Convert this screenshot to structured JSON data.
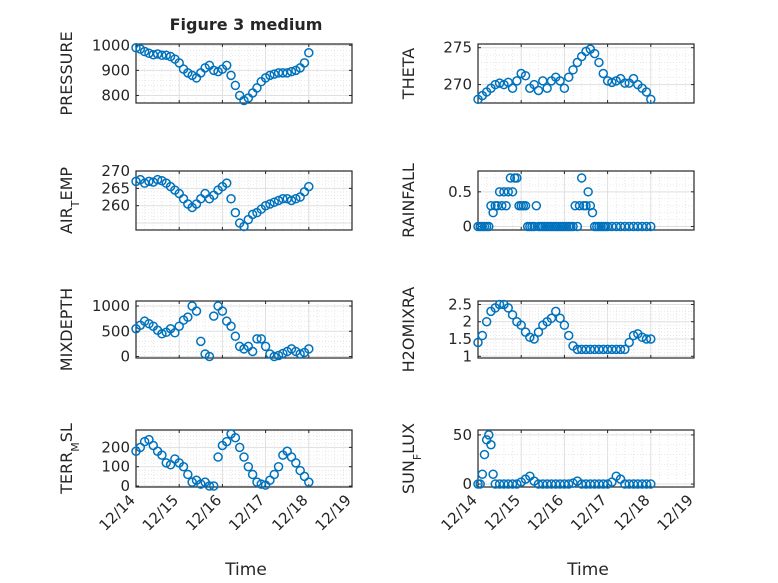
{
  "figure": {
    "title": "Figure 3 medium",
    "xlabel_left": "Time",
    "xlabel_right": "Time",
    "marker_color": "#0072BD",
    "x_ticks": [
      "12/14",
      "12/15",
      "12/16",
      "12/17",
      "12/18",
      "12/19"
    ]
  },
  "chart_data": [
    {
      "type": "scatter",
      "ylabel": "PRESSURE",
      "ylim": [
        770,
        1005
      ],
      "yticks": [
        800,
        900,
        1000
      ],
      "xlim": [
        0,
        5
      ],
      "grid": true,
      "x": [
        0.0,
        0.1,
        0.2,
        0.3,
        0.4,
        0.5,
        0.6,
        0.7,
        0.8,
        0.9,
        1.0,
        1.1,
        1.2,
        1.3,
        1.4,
        1.5,
        1.6,
        1.7,
        1.8,
        1.9,
        2.0,
        2.1,
        2.2,
        2.3,
        2.4,
        2.5,
        2.6,
        2.7,
        2.8,
        2.9,
        3.0,
        3.1,
        3.2,
        3.3,
        3.4,
        3.5,
        3.6,
        3.7,
        3.8,
        3.9,
        4.0
      ],
      "y": [
        990,
        985,
        975,
        968,
        962,
        965,
        960,
        960,
        955,
        945,
        930,
        905,
        890,
        880,
        870,
        890,
        910,
        920,
        900,
        895,
        905,
        920,
        880,
        840,
        800,
        780,
        790,
        810,
        830,
        855,
        870,
        880,
        885,
        890,
        890,
        890,
        895,
        900,
        910,
        930,
        970
      ]
    },
    {
      "type": "scatter",
      "ylabel": "THETA",
      "ylim": [
        267.5,
        275.5
      ],
      "yticks": [
        270,
        275
      ],
      "xlim": [
        0,
        5
      ],
      "grid": true,
      "x": [
        0.0,
        0.1,
        0.2,
        0.3,
        0.4,
        0.5,
        0.6,
        0.7,
        0.8,
        0.9,
        1.0,
        1.1,
        1.2,
        1.3,
        1.4,
        1.5,
        1.6,
        1.7,
        1.8,
        1.9,
        2.0,
        2.1,
        2.2,
        2.3,
        2.4,
        2.5,
        2.6,
        2.7,
        2.8,
        2.9,
        3.0,
        3.1,
        3.2,
        3.3,
        3.4,
        3.5,
        3.6,
        3.7,
        3.8,
        3.9,
        4.0
      ],
      "y": [
        268,
        268.5,
        269,
        269.5,
        270,
        270.2,
        270,
        270.3,
        269.5,
        270.5,
        271.5,
        271.2,
        269.5,
        270,
        269.2,
        270.5,
        269.5,
        270.5,
        271,
        270.5,
        269.5,
        271,
        272,
        273,
        273.8,
        274.5,
        274.8,
        274.2,
        273,
        271.5,
        270.5,
        270.3,
        270.5,
        270.8,
        270.2,
        270.2,
        270.8,
        270,
        269.5,
        269,
        268
      ]
    },
    {
      "type": "scatter",
      "ylabel": "AIR_TEMP",
      "ylim": [
        253,
        270
      ],
      "yticks": [
        260,
        265,
        270
      ],
      "xlim": [
        0,
        5
      ],
      "grid": true,
      "x": [
        0.0,
        0.1,
        0.2,
        0.3,
        0.4,
        0.5,
        0.6,
        0.7,
        0.8,
        0.9,
        1.0,
        1.1,
        1.2,
        1.3,
        1.4,
        1.5,
        1.6,
        1.7,
        1.8,
        1.9,
        2.0,
        2.1,
        2.2,
        2.3,
        2.4,
        2.5,
        2.6,
        2.7,
        2.8,
        2.9,
        3.0,
        3.1,
        3.2,
        3.3,
        3.4,
        3.5,
        3.6,
        3.7,
        3.8,
        3.9,
        4.0
      ],
      "y": [
        267,
        267.5,
        266.5,
        267,
        266.8,
        267.5,
        267.2,
        266.5,
        265.5,
        264.5,
        263.5,
        262,
        260.5,
        259.5,
        260.5,
        262,
        263.5,
        262,
        263,
        264.5,
        265.5,
        266.5,
        262,
        258,
        255,
        254,
        256,
        257.5,
        258,
        259,
        260,
        260.5,
        261,
        261.5,
        262,
        262,
        261.5,
        262,
        262.5,
        264,
        265.5
      ]
    },
    {
      "type": "scatter",
      "ylabel": "RAINFALL",
      "ylim": [
        -0.05,
        0.8
      ],
      "yticks": [
        0,
        0.5
      ],
      "xlim": [
        0,
        5
      ],
      "grid": true,
      "x": [
        0.0,
        0.05,
        0.1,
        0.15,
        0.2,
        0.25,
        0.3,
        0.35,
        0.4,
        0.45,
        0.5,
        0.55,
        0.6,
        0.65,
        0.7,
        0.75,
        0.8,
        0.85,
        0.9,
        0.95,
        1.0,
        1.05,
        1.1,
        1.15,
        1.2,
        1.25,
        1.3,
        1.35,
        1.4,
        1.45,
        1.5,
        1.55,
        1.6,
        1.65,
        1.7,
        1.75,
        1.8,
        1.85,
        1.9,
        1.95,
        2.0,
        2.05,
        2.1,
        2.15,
        2.2,
        2.25,
        2.3,
        2.35,
        2.4,
        2.45,
        2.5,
        2.55,
        2.6,
        2.65,
        2.7,
        2.75,
        2.8,
        2.85,
        2.9,
        2.95,
        3.0,
        3.1,
        3.2,
        3.3,
        3.4,
        3.5,
        3.6,
        3.7,
        3.8,
        3.9,
        4.0
      ],
      "y": [
        0,
        0,
        0,
        0,
        0,
        0,
        0.3,
        0.2,
        0.3,
        0.3,
        0.5,
        0.3,
        0.5,
        0.3,
        0.5,
        0.7,
        0.5,
        0.7,
        0.7,
        0.3,
        0.3,
        0.3,
        0.3,
        0,
        0,
        0,
        0,
        0.3,
        0,
        0,
        0,
        0,
        0,
        0,
        0,
        0,
        0,
        0,
        0,
        0,
        0,
        0,
        0,
        0,
        0,
        0.3,
        0,
        0.3,
        0.7,
        0.3,
        0.3,
        0.5,
        0.3,
        0.2,
        0,
        0,
        0,
        0,
        0,
        0,
        0,
        0,
        0,
        0,
        0,
        0,
        0,
        0,
        0,
        0,
        0
      ]
    },
    {
      "type": "scatter",
      "ylabel": "MIXDEPTH",
      "ylim": [
        -30,
        1100
      ],
      "yticks": [
        0,
        500,
        1000
      ],
      "xlim": [
        0,
        5
      ],
      "grid": true,
      "x": [
        0.0,
        0.1,
        0.2,
        0.3,
        0.4,
        0.5,
        0.6,
        0.7,
        0.8,
        0.9,
        1.0,
        1.1,
        1.2,
        1.3,
        1.4,
        1.5,
        1.6,
        1.7,
        1.8,
        1.9,
        2.0,
        2.1,
        2.2,
        2.3,
        2.4,
        2.5,
        2.6,
        2.7,
        2.8,
        2.9,
        3.0,
        3.1,
        3.2,
        3.3,
        3.4,
        3.5,
        3.6,
        3.7,
        3.8,
        3.9,
        4.0
      ],
      "y": [
        550,
        620,
        700,
        650,
        600,
        520,
        450,
        480,
        550,
        470,
        600,
        720,
        780,
        1000,
        900,
        300,
        50,
        0,
        800,
        1000,
        900,
        700,
        600,
        400,
        200,
        150,
        200,
        100,
        350,
        350,
        200,
        50,
        0,
        20,
        60,
        100,
        150,
        100,
        50,
        80,
        150
      ]
    },
    {
      "type": "scatter",
      "ylabel": "H2OMIXRA",
      "ylim": [
        0.95,
        2.6
      ],
      "yticks": [
        1,
        1.5,
        2,
        2.5
      ],
      "xlim": [
        0,
        5
      ],
      "grid": true,
      "x": [
        0.0,
        0.1,
        0.2,
        0.3,
        0.4,
        0.5,
        0.6,
        0.7,
        0.8,
        0.9,
        1.0,
        1.1,
        1.2,
        1.3,
        1.4,
        1.5,
        1.6,
        1.7,
        1.8,
        1.9,
        2.0,
        2.1,
        2.2,
        2.3,
        2.4,
        2.5,
        2.6,
        2.7,
        2.8,
        2.9,
        3.0,
        3.1,
        3.2,
        3.3,
        3.4,
        3.5,
        3.6,
        3.7,
        3.8,
        3.9,
        4.0
      ],
      "y": [
        1.4,
        1.6,
        2.0,
        2.3,
        2.4,
        2.5,
        2.5,
        2.4,
        2.2,
        2.0,
        1.9,
        1.7,
        1.55,
        1.5,
        1.7,
        1.9,
        2.0,
        2.1,
        2.3,
        2.1,
        1.9,
        1.6,
        1.3,
        1.2,
        1.2,
        1.2,
        1.2,
        1.2,
        1.2,
        1.2,
        1.2,
        1.2,
        1.2,
        1.2,
        1.2,
        1.4,
        1.6,
        1.65,
        1.55,
        1.5,
        1.5
      ]
    },
    {
      "type": "scatter",
      "ylabel": "TERR_MSL",
      "ylim": [
        -5,
        290
      ],
      "yticks": [
        0,
        100,
        200
      ],
      "xlim": [
        0,
        5
      ],
      "grid": true,
      "x": [
        0.0,
        0.1,
        0.2,
        0.3,
        0.4,
        0.5,
        0.6,
        0.7,
        0.8,
        0.9,
        1.0,
        1.1,
        1.2,
        1.3,
        1.4,
        1.5,
        1.6,
        1.7,
        1.8,
        1.9,
        2.0,
        2.1,
        2.2,
        2.3,
        2.4,
        2.5,
        2.6,
        2.7,
        2.8,
        2.9,
        3.0,
        3.1,
        3.2,
        3.3,
        3.4,
        3.5,
        3.6,
        3.7,
        3.8,
        3.9,
        4.0
      ],
      "y": [
        180,
        200,
        230,
        240,
        210,
        180,
        160,
        120,
        110,
        140,
        120,
        100,
        60,
        20,
        30,
        10,
        20,
        0,
        0,
        150,
        210,
        230,
        270,
        250,
        200,
        150,
        100,
        60,
        20,
        10,
        5,
        30,
        60,
        100,
        160,
        180,
        150,
        120,
        80,
        50,
        20
      ]
    },
    {
      "type": "scatter",
      "ylabel": "SUN_FLUX",
      "ylim": [
        -3,
        55
      ],
      "yticks": [
        0,
        50
      ],
      "xlim": [
        0,
        5
      ],
      "grid": true,
      "x": [
        0.0,
        0.05,
        0.1,
        0.15,
        0.2,
        0.25,
        0.3,
        0.35,
        0.4,
        0.5,
        0.6,
        0.7,
        0.8,
        0.9,
        1.0,
        1.1,
        1.2,
        1.3,
        1.4,
        1.5,
        1.6,
        1.7,
        1.8,
        1.9,
        2.0,
        2.1,
        2.2,
        2.3,
        2.4,
        2.5,
        2.6,
        2.7,
        2.8,
        2.9,
        3.0,
        3.1,
        3.2,
        3.3,
        3.4,
        3.5,
        3.6,
        3.7,
        3.8,
        3.9,
        4.0
      ],
      "y": [
        0,
        0,
        10,
        30,
        45,
        50,
        40,
        10,
        0,
        0,
        0,
        0,
        0,
        0,
        2,
        5,
        8,
        3,
        0,
        0,
        0,
        0,
        0,
        0,
        0,
        0,
        1,
        3,
        0,
        0,
        0,
        0,
        0,
        0,
        0,
        2,
        8,
        5,
        0,
        0,
        0,
        0,
        0,
        0,
        0
      ]
    }
  ]
}
